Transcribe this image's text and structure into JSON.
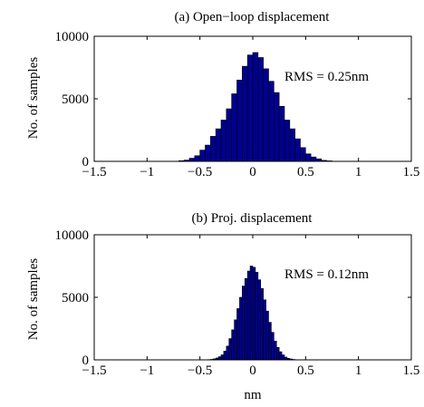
{
  "chart_data": [
    {
      "type": "bar",
      "title": "(a) Open−loop displacement",
      "xlabel": "",
      "ylabel": "No. of samples",
      "annotation": "RMS = 0.25nm",
      "xlim": [
        -1.5,
        1.5
      ],
      "ylim": [
        0,
        10000
      ],
      "xticks": [
        "−1.5",
        "−1",
        "−0.5",
        "0",
        "0.5",
        "1",
        "1.5"
      ],
      "yticks": [
        "0",
        "5000",
        "10000"
      ],
      "bar_color": "#00008f",
      "bin_width": 0.05,
      "bin_centers": [
        -0.675,
        -0.625,
        -0.575,
        -0.525,
        -0.475,
        -0.425,
        -0.375,
        -0.325,
        -0.275,
        -0.225,
        -0.175,
        -0.125,
        -0.075,
        -0.025,
        0.025,
        0.075,
        0.125,
        0.175,
        0.225,
        0.275,
        0.325,
        0.375,
        0.425,
        0.475,
        0.525,
        0.575,
        0.625,
        0.675,
        0.725
      ],
      "values": [
        50,
        100,
        250,
        450,
        900,
        1300,
        2000,
        2600,
        3300,
        4200,
        5400,
        6500,
        7600,
        8500,
        8700,
        8300,
        7400,
        6400,
        5500,
        4400,
        3300,
        2600,
        1800,
        1100,
        600,
        350,
        200,
        80,
        40
      ]
    },
    {
      "type": "bar",
      "title": "(b) Proj. displacement",
      "xlabel": "nm",
      "ylabel": "No. of samples",
      "annotation": "RMS = 0.12nm",
      "xlim": [
        -1.5,
        1.5
      ],
      "ylim": [
        0,
        10000
      ],
      "xticks": [
        "−1.5",
        "−1",
        "−0.5",
        "0",
        "0.5",
        "1",
        "1.5"
      ],
      "yticks": [
        "0",
        "5000",
        "10000"
      ],
      "bar_color": "#00008f",
      "bin_width": 0.025,
      "bin_centers": [
        -0.4125,
        -0.3875,
        -0.3625,
        -0.3375,
        -0.3125,
        -0.2875,
        -0.2625,
        -0.2375,
        -0.2125,
        -0.1875,
        -0.1625,
        -0.1375,
        -0.1125,
        -0.0875,
        -0.0625,
        -0.0375,
        -0.0125,
        0.0125,
        0.0375,
        0.0625,
        0.0875,
        0.1125,
        0.1375,
        0.1625,
        0.1875,
        0.2125,
        0.2375,
        0.2625,
        0.2875,
        0.3125,
        0.3375,
        0.3625,
        0.3875,
        0.4125
      ],
      "values": [
        20,
        40,
        80,
        150,
        250,
        400,
        700,
        1100,
        1700,
        2400,
        3200,
        4100,
        5000,
        5900,
        6500,
        7100,
        7500,
        7400,
        7000,
        6400,
        5700,
        4800,
        3900,
        3000,
        2200,
        1500,
        1000,
        650,
        400,
        220,
        120,
        70,
        35,
        15
      ]
    }
  ]
}
